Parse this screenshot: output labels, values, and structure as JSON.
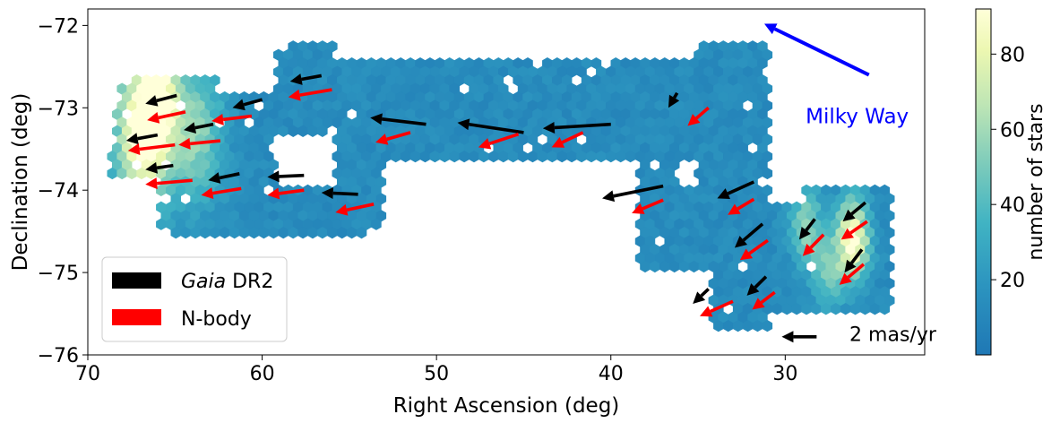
{
  "chart_data": [
    {
      "type": "hexbin-quiver",
      "xlabel": "Right Ascension (deg)",
      "ylabel": "Declination (deg)",
      "xlim": [
        70,
        22
      ],
      "ylim": [
        -76,
        -71.8
      ],
      "x_inverted": true,
      "xticks": [
        70,
        60,
        50,
        40,
        30
      ],
      "xtick_labels": [
        "70",
        "60",
        "50",
        "40",
        "30"
      ],
      "yticks": [
        -72,
        -73,
        -74,
        -75,
        -76
      ],
      "ytick_labels": [
        "−72",
        "−73",
        "−74",
        "−75",
        "−76"
      ],
      "grid": false,
      "legend_placement": "bottom-left",
      "legend": [
        {
          "italic": "Gaia",
          "text": " DR2",
          "color": "#000000"
        },
        {
          "italic": "",
          "text": "N-body",
          "color": "#ff0000"
        }
      ],
      "colorbar": {
        "label": "number of stars",
        "min": 0,
        "max": 92,
        "ticks": [
          20,
          40,
          60,
          80
        ],
        "tick_labels": [
          "20",
          "40",
          "60",
          "80"
        ],
        "colormap": "YlGnBu_r"
      },
      "annotations": [
        {
          "name": "milky-way-label",
          "text": "Milky Way",
          "x": 26,
          "y": -73.1,
          "color": "#0000ff"
        },
        {
          "name": "scale-label",
          "text": "2 mas/yr",
          "x": 25.8,
          "y": -75.8,
          "color": "#000000"
        }
      ],
      "milky_way_arrow": {
        "x": 25.2,
        "y": -72.6,
        "x_end": 31.2,
        "y_end": -71.98,
        "color": "#0000ff"
      },
      "scale_arrow": {
        "x": 28.2,
        "y": -75.78,
        "x_end": 30.2,
        "y_end": -75.78
      },
      "gaia_arrows": [
        {
          "x": 64.9,
          "y": -72.85,
          "x_end": 66.7,
          "y_end": -72.95
        },
        {
          "x": 66.0,
          "y": -73.33,
          "x_end": 67.8,
          "y_end": -73.4
        },
        {
          "x": 65.1,
          "y": -73.7,
          "x_end": 66.7,
          "y_end": -73.75
        },
        {
          "x": 62.8,
          "y": -73.2,
          "x_end": 64.5,
          "y_end": -73.27
        },
        {
          "x": 60.0,
          "y": -72.9,
          "x_end": 61.7,
          "y_end": -73.0
        },
        {
          "x": 56.6,
          "y": -72.61,
          "x_end": 58.4,
          "y_end": -72.68
        },
        {
          "x": 61.3,
          "y": -73.8,
          "x_end": 63.1,
          "y_end": -73.88
        },
        {
          "x": 57.6,
          "y": -73.82,
          "x_end": 59.7,
          "y_end": -73.84
        },
        {
          "x": 54.5,
          "y": -74.05,
          "x_end": 56.6,
          "y_end": -74.03
        },
        {
          "x": 50.6,
          "y": -73.2,
          "x_end": 53.8,
          "y_end": -73.12
        },
        {
          "x": 45.0,
          "y": -73.3,
          "x_end": 48.8,
          "y_end": -73.18
        },
        {
          "x": 40.0,
          "y": -73.2,
          "x_end": 43.9,
          "y_end": -73.25
        },
        {
          "x": 36.2,
          "y": -72.82,
          "x_end": 36.7,
          "y_end": -73.0
        },
        {
          "x": 37.0,
          "y": -73.95,
          "x_end": 40.5,
          "y_end": -74.1
        },
        {
          "x": 31.8,
          "y": -73.9,
          "x_end": 33.9,
          "y_end": -74.1
        },
        {
          "x": 31.3,
          "y": -74.41,
          "x_end": 32.9,
          "y_end": -74.7
        },
        {
          "x": 34.4,
          "y": -75.2,
          "x_end": 35.3,
          "y_end": -75.38
        },
        {
          "x": 31.1,
          "y": -75.05,
          "x_end": 32.2,
          "y_end": -75.28
        },
        {
          "x": 28.3,
          "y": -74.35,
          "x_end": 29.2,
          "y_end": -74.6
        },
        {
          "x": 25.4,
          "y": -74.15,
          "x_end": 26.7,
          "y_end": -74.38
        },
        {
          "x": 25.6,
          "y": -74.72,
          "x_end": 26.6,
          "y_end": -75.0
        }
      ],
      "nbody_arrows": [
        {
          "x": 64.4,
          "y": -73.05,
          "x_end": 66.6,
          "y_end": -73.15
        },
        {
          "x": 65.0,
          "y": -73.45,
          "x_end": 67.7,
          "y_end": -73.52
        },
        {
          "x": 64.0,
          "y": -73.88,
          "x_end": 66.7,
          "y_end": -73.93
        },
        {
          "x": 62.4,
          "y": -73.4,
          "x_end": 64.8,
          "y_end": -73.45
        },
        {
          "x": 60.6,
          "y": -73.1,
          "x_end": 62.9,
          "y_end": -73.16
        },
        {
          "x": 56.0,
          "y": -72.78,
          "x_end": 58.5,
          "y_end": -72.87
        },
        {
          "x": 61.2,
          "y": -73.98,
          "x_end": 63.5,
          "y_end": -74.06
        },
        {
          "x": 57.6,
          "y": -74.0,
          "x_end": 59.7,
          "y_end": -74.06
        },
        {
          "x": 53.6,
          "y": -74.17,
          "x_end": 55.8,
          "y_end": -74.27
        },
        {
          "x": 51.5,
          "y": -73.3,
          "x_end": 53.5,
          "y_end": -73.42
        },
        {
          "x": 45.3,
          "y": -73.32,
          "x_end": 47.6,
          "y_end": -73.48
        },
        {
          "x": 41.6,
          "y": -73.3,
          "x_end": 43.4,
          "y_end": -73.48
        },
        {
          "x": 34.4,
          "y": -73.0,
          "x_end": 35.6,
          "y_end": -73.22
        },
        {
          "x": 37.0,
          "y": -74.12,
          "x_end": 38.8,
          "y_end": -74.28
        },
        {
          "x": 31.8,
          "y": -74.11,
          "x_end": 33.3,
          "y_end": -74.3
        },
        {
          "x": 31.0,
          "y": -74.61,
          "x_end": 32.6,
          "y_end": -74.85
        },
        {
          "x": 33.0,
          "y": -75.35,
          "x_end": 34.9,
          "y_end": -75.53
        },
        {
          "x": 30.6,
          "y": -75.24,
          "x_end": 31.9,
          "y_end": -75.45
        },
        {
          "x": 27.8,
          "y": -74.54,
          "x_end": 29.0,
          "y_end": -74.8
        },
        {
          "x": 25.3,
          "y": -74.38,
          "x_end": 26.8,
          "y_end": -74.6
        },
        {
          "x": 25.5,
          "y": -74.9,
          "x_end": 26.9,
          "y_end": -75.15
        }
      ],
      "density_regions": [
        {
          "ra_min": 62.5,
          "ra_max": 68.8,
          "dec_min": -73.8,
          "dec_max": -72.6,
          "ra_left_at_top": 68.0
        },
        {
          "ra_min": 59.2,
          "ra_max": 66.0,
          "dec_min": -73.9,
          "dec_max": -72.8,
          "ra_left_at_top": 66.0
        },
        {
          "ra_min": 55.8,
          "ra_max": 66.0,
          "dec_min": -74.6,
          "dec_max": -73.9,
          "ra_left_at_top": 66.0
        },
        {
          "ra_min": 55.8,
          "ra_max": 59.2,
          "dec_min": -73.3,
          "dec_max": -72.2,
          "ra_left_at_top": 59.2
        },
        {
          "ra_min": 35.0,
          "ra_max": 55.8,
          "dec_min": -73.65,
          "dec_max": -72.4,
          "ra_left_at_top": 55.8
        },
        {
          "ra_min": 54.1,
          "ra_max": 55.8,
          "dec_min": -74.6,
          "dec_max": -73.65,
          "ra_left_at_top": 55.8
        },
        {
          "ra_min": 53.0,
          "ra_max": 54.1,
          "dec_min": -74.45,
          "dec_max": -73.65,
          "ra_left_at_top": 54.1
        },
        {
          "ra_min": 30.8,
          "ra_max": 35.0,
          "dec_min": -73.9,
          "dec_max": -72.2,
          "ra_left_at_top": 35.0
        },
        {
          "ra_min": 30.8,
          "ra_max": 38.5,
          "dec_min": -74.95,
          "dec_max": -73.9,
          "ra_left_at_top": 38.5
        },
        {
          "ra_min": 36.1,
          "ra_max": 38.5,
          "dec_min": -73.9,
          "dec_max": -73.35,
          "ra_left_at_top": 38.5
        },
        {
          "ra_min": 30.8,
          "ra_max": 34.3,
          "dec_min": -75.75,
          "dec_max": -74.95,
          "ra_left_at_top": 34.3
        },
        {
          "ra_min": 24.0,
          "ra_max": 30.8,
          "dec_min": -75.45,
          "dec_max": -74.2,
          "ra_left_at_top": 30.8
        },
        {
          "ra_min": 24.0,
          "ra_max": 29.0,
          "dec_min": -74.2,
          "dec_max": -73.95,
          "ra_left_at_top": 29.0
        }
      ],
      "density_peaks": [
        {
          "ra": 66.8,
          "dec": -73.3,
          "value": 88,
          "spread": 1.6
        },
        {
          "ra": 66.0,
          "dec": -72.85,
          "value": 62,
          "spread": 1.0
        },
        {
          "ra": 63.8,
          "dec": -73.3,
          "value": 42,
          "spread": 1.6
        },
        {
          "ra": 26.1,
          "dec": -74.6,
          "value": 80,
          "spread": 0.9
        },
        {
          "ra": 28.8,
          "dec": -74.45,
          "value": 42,
          "spread": 0.9
        },
        {
          "ra": 27.5,
          "dec": -75.0,
          "value": 35,
          "spread": 0.9
        }
      ],
      "density_base": 8
    }
  ]
}
